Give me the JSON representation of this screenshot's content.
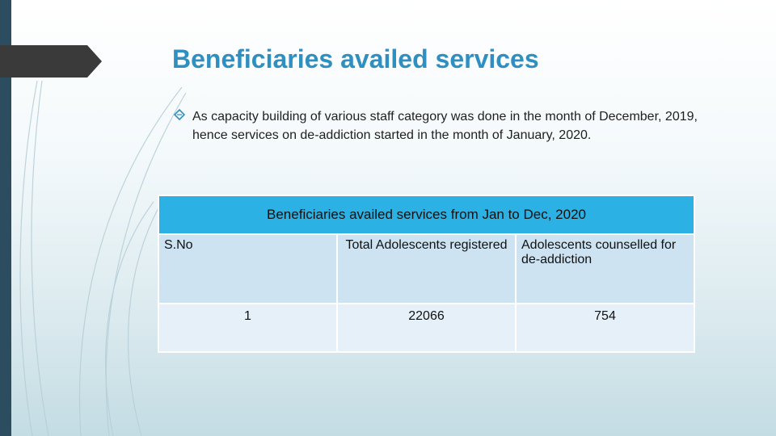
{
  "slide": {
    "title": "Beneficiaries availed services",
    "bullet_text": "As capacity building of various staff category was done in the month of December, 2019, hence services on de-addiction started in the month of January, 2020.",
    "bullet_icon": "diamond-outline-icon",
    "accent_color": "#2e8fc0"
  },
  "table": {
    "caption": "Beneficiaries availed services from Jan to Dec, 2020",
    "headers": [
      "S.No",
      "Total Adolescents registered",
      "Adolescents counselled for de-addiction"
    ],
    "rows": [
      [
        "1",
        "22066",
        "754"
      ]
    ]
  }
}
